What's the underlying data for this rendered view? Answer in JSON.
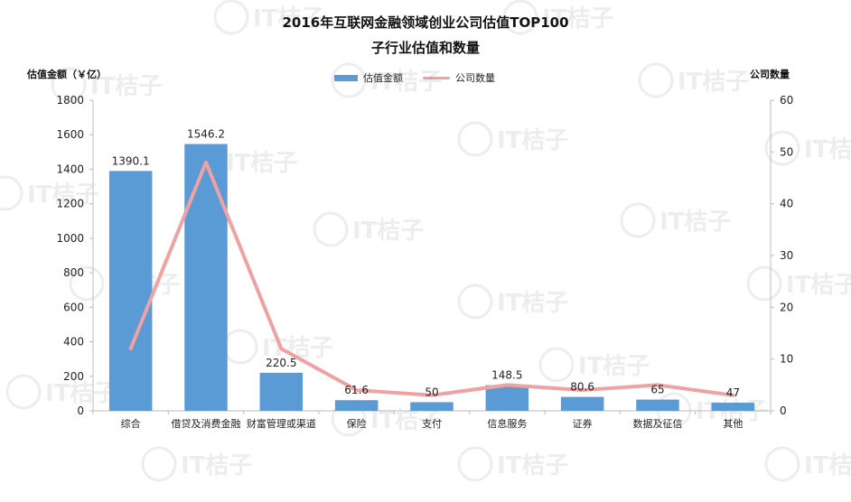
{
  "chart_data": {
    "type": "bar",
    "title": "2016年互联网金融领域创业公司估值TOP100",
    "subtitle": "子行业估值和数量",
    "ylabel": "估值金额（￥亿）",
    "y2label": "公司数量",
    "categories": [
      "综合",
      "借贷及消费金融",
      "财富管理或渠道",
      "保险",
      "支付",
      "信息服务",
      "证券",
      "数据及征信",
      "其他"
    ],
    "series": [
      {
        "name": "估值金额",
        "type": "bar",
        "axis": "left",
        "color": "#5b9bd5",
        "values": [
          1390.1,
          1546.2,
          220.5,
          61.6,
          50,
          148.5,
          80.6,
          65,
          47
        ],
        "labels": [
          "1390.1",
          "1546.2",
          "220.5",
          "61.6",
          "50",
          "148.5",
          "80.6",
          "65",
          "47"
        ]
      },
      {
        "name": "公司数量",
        "type": "line",
        "axis": "right",
        "color": "#f0a1a1",
        "values": [
          12,
          48,
          12,
          4,
          3,
          5,
          4,
          5,
          3
        ]
      }
    ],
    "ylim": [
      0,
      1800
    ],
    "yticks": [
      0,
      200,
      400,
      600,
      800,
      1000,
      1200,
      1400,
      1600,
      1800
    ],
    "y2lim": [
      0,
      60
    ],
    "y2ticks": [
      0,
      10,
      20,
      30,
      40,
      50,
      60
    ],
    "legend_position": "top-center",
    "grid": false
  },
  "watermark": "IT桔子"
}
